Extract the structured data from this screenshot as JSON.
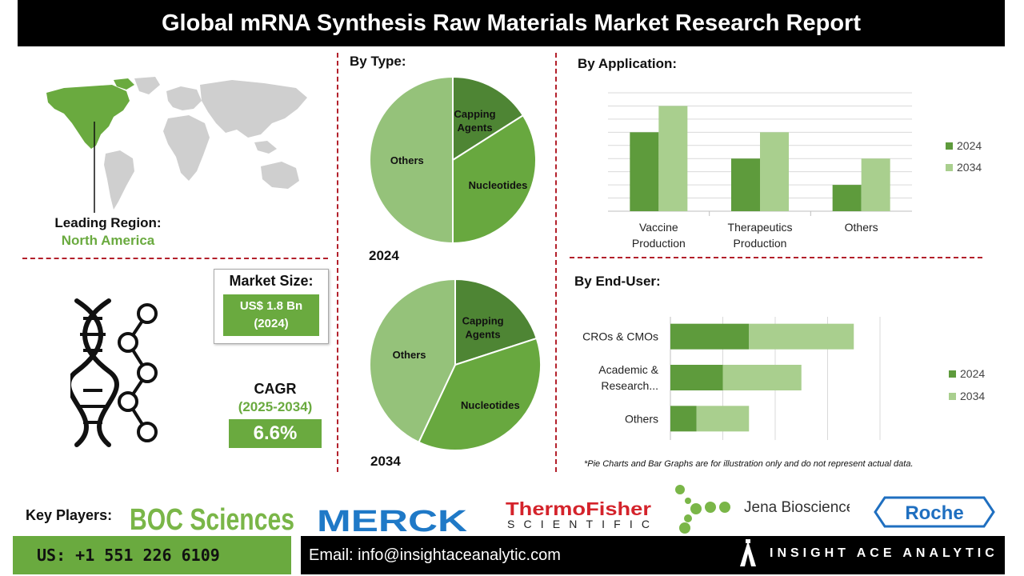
{
  "title": "Global mRNA Synthesis Raw Materials Market Research Report",
  "region": {
    "label": "Leading Region:",
    "value": "North America"
  },
  "market_size": {
    "label": "Market Size:",
    "value_line1": "US$ 1.8 Bn",
    "value_line2": "(2024)"
  },
  "cagr": {
    "label": "CAGR",
    "period": "(2025-2034)",
    "value": "6.6%"
  },
  "sections": {
    "by_type": "By Type:",
    "by_application": "By Application:",
    "by_end_user": "By End-User:"
  },
  "note": "*Pie Charts and Bar Graphs are for illustration only and do not represent actual data.",
  "key_players": {
    "label": "Key Players:",
    "logos": [
      "BOC Sciences",
      "MERCK",
      "ThermoFisher",
      "SCIENTIFIC",
      "Jena Bioscience",
      "Roche"
    ]
  },
  "footer": {
    "phone": "US: +1 551 226 6109",
    "email": "Email: info@insightaceanalytic.com",
    "brand": "INSIGHT ACE ANALYTIC"
  },
  "colors": {
    "dark_green": "#5e9b3c",
    "mid_green": "#6aaa3f",
    "light_green": "#a9cf8e",
    "pie_dark": "#4e8534",
    "pie_mid": "#68a83f",
    "pie_light": "#95c27a",
    "accent_red": "#b3202b"
  },
  "chart_data": [
    {
      "type": "pie",
      "year_label": "2024",
      "slices": [
        {
          "label": "Capping Agents",
          "value": 16
        },
        {
          "label": "Nucleotides",
          "value": 34
        },
        {
          "label": "Others",
          "value": 50
        }
      ]
    },
    {
      "type": "pie",
      "year_label": "2034",
      "slices": [
        {
          "label": "Capping Agents",
          "value": 20
        },
        {
          "label": "Nucleotides",
          "value": 37
        },
        {
          "label": "Others",
          "value": 43
        }
      ]
    },
    {
      "type": "bar",
      "categories": [
        "Vaccine Production",
        "Therapeutics Production",
        "Others"
      ],
      "category_lines": [
        [
          "Vaccine",
          "Production"
        ],
        [
          "Therapeutics",
          "Production"
        ],
        [
          "Others"
        ]
      ],
      "series": [
        {
          "name": "2024",
          "values": [
            6,
            4,
            2
          ]
        },
        {
          "name": "2034",
          "values": [
            8,
            6,
            4
          ]
        }
      ],
      "ylim": [
        0,
        9
      ],
      "grid": true,
      "legend": "right"
    },
    {
      "type": "bar",
      "orientation": "horizontal",
      "stacked": true,
      "categories": [
        "CROs & CMOs",
        "Academic & Research...",
        "Others"
      ],
      "category_lines": [
        [
          "CROs & CMOs"
        ],
        [
          "Academic &",
          "Research..."
        ],
        [
          "Others"
        ]
      ],
      "series": [
        {
          "name": "2024",
          "values": [
            3,
            2,
            1
          ]
        },
        {
          "name": "2034",
          "values": [
            4,
            3,
            2
          ]
        }
      ],
      "xlim": [
        0,
        8
      ],
      "grid": true,
      "legend": "right"
    }
  ]
}
